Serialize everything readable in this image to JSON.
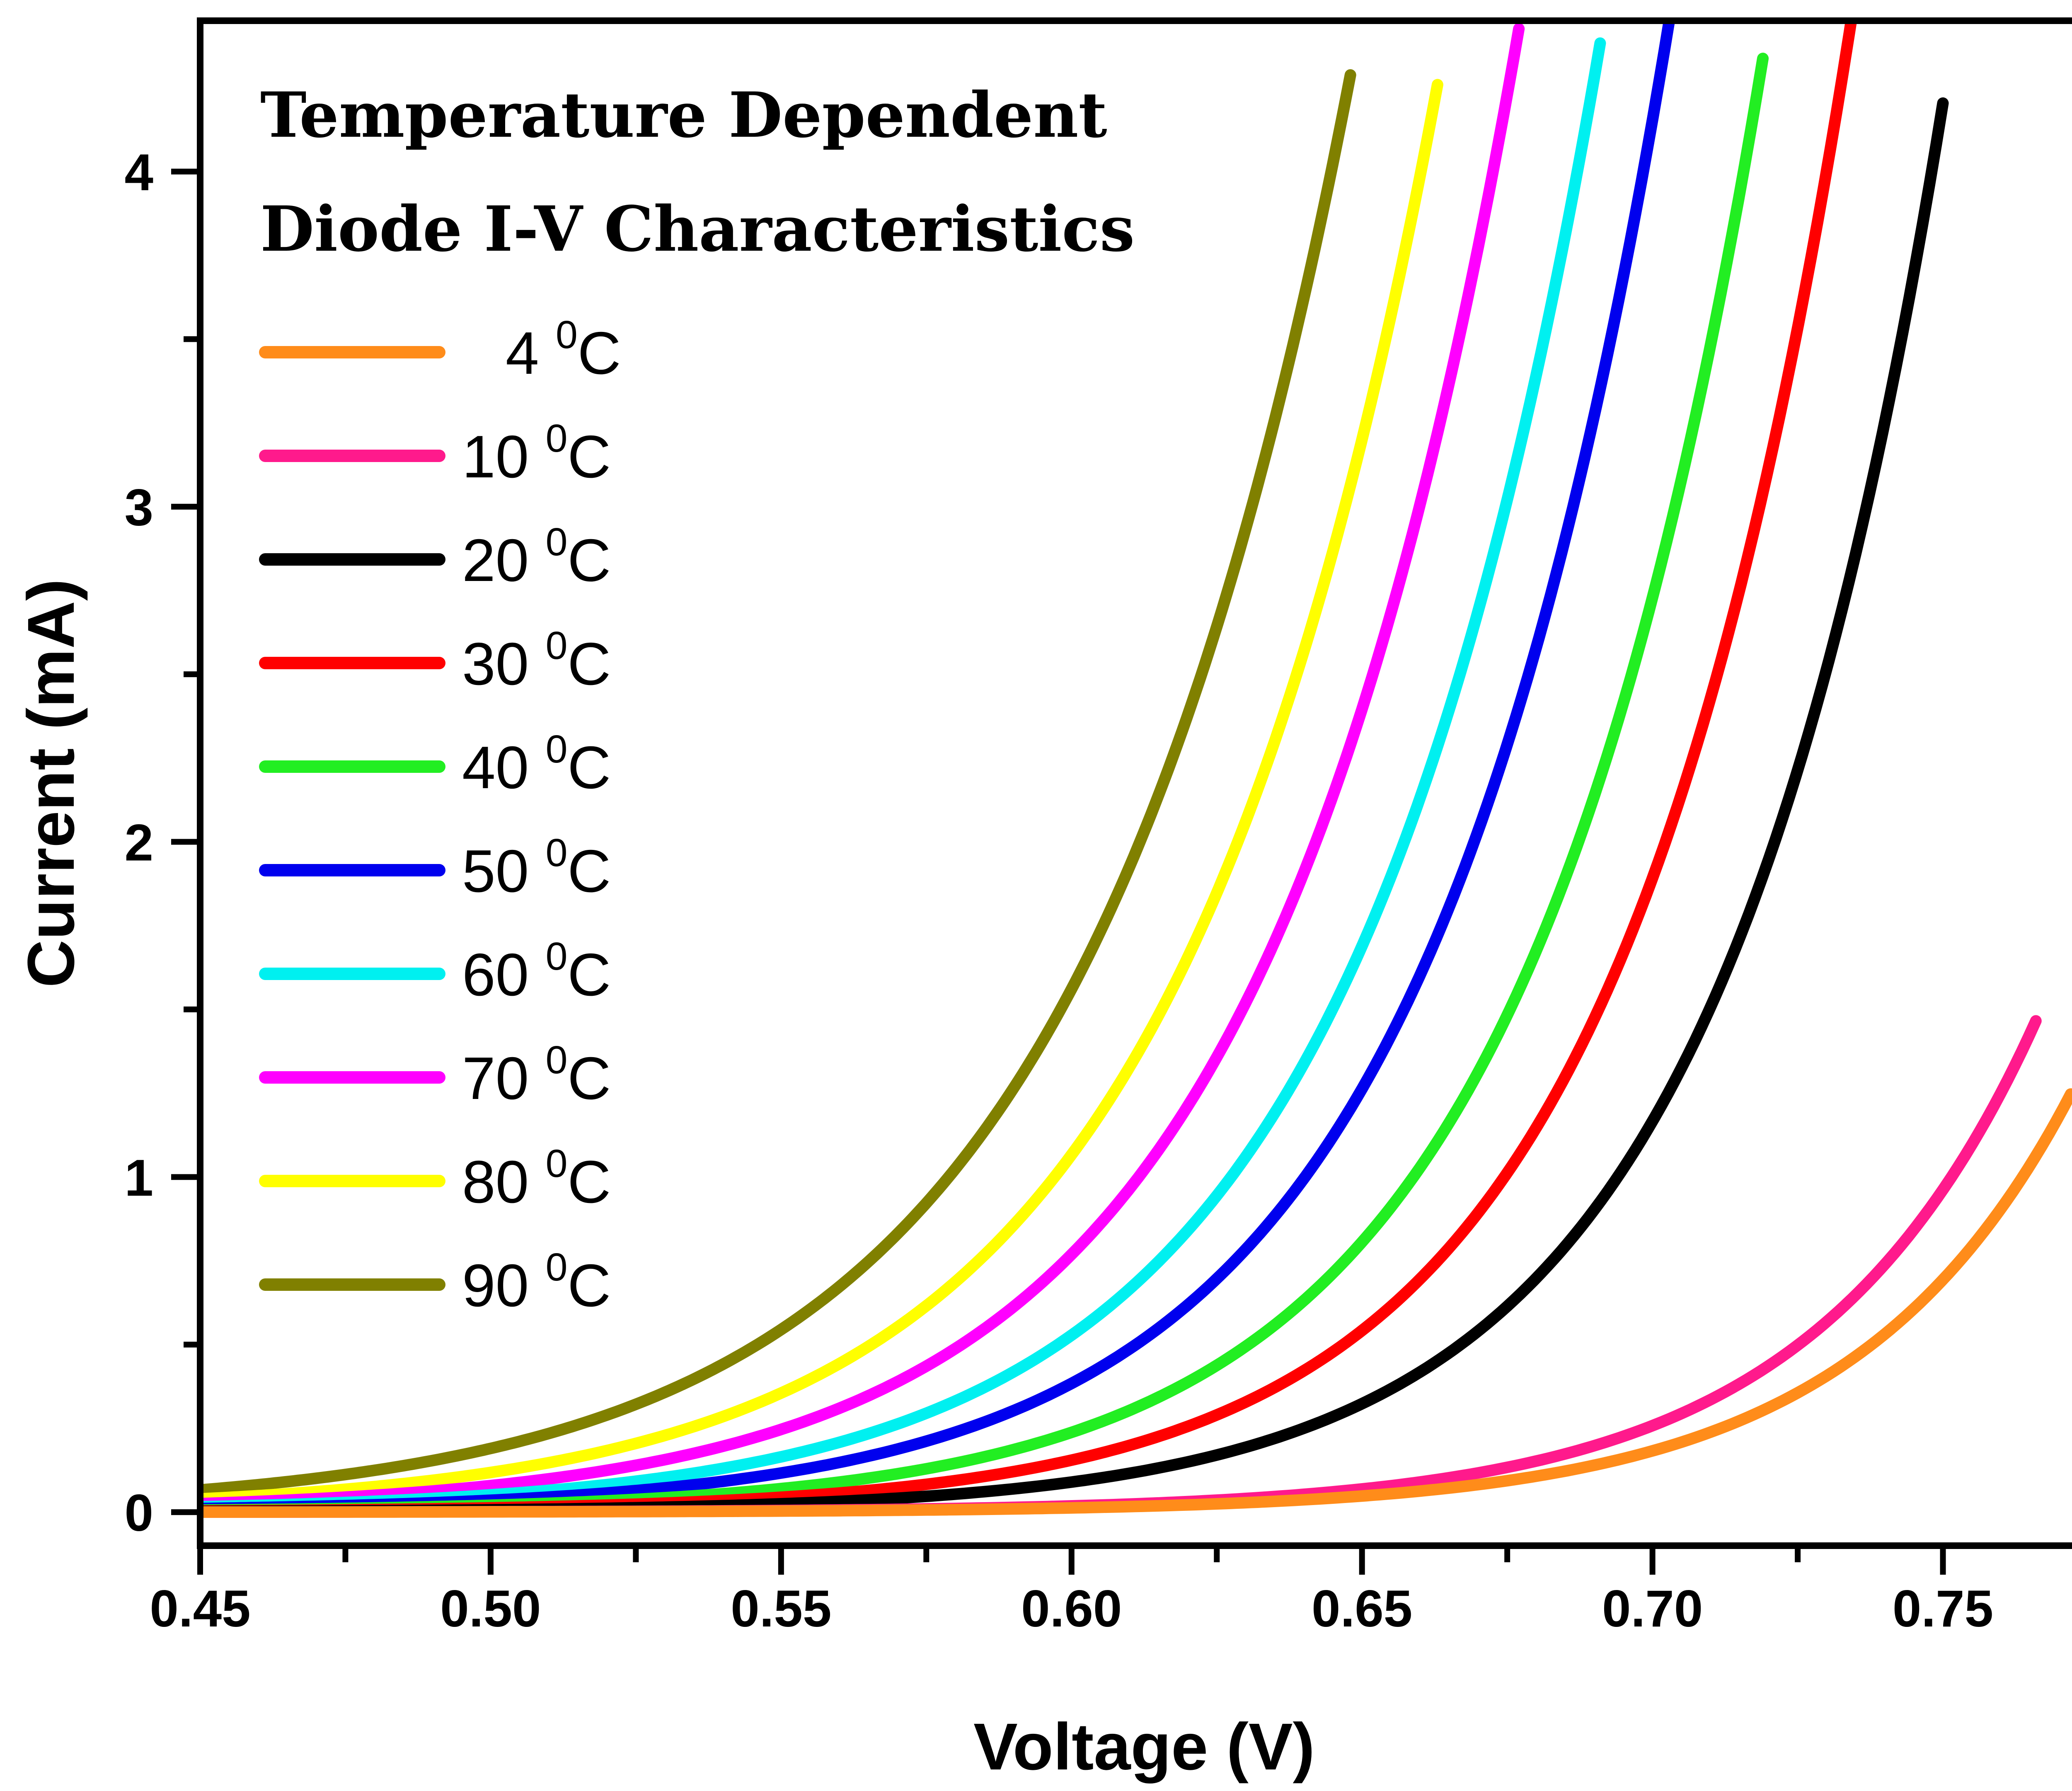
{
  "chart_data": {
    "type": "line",
    "title_lines": [
      "Temperature Dependent",
      "Diode I-V Characteristics"
    ],
    "xlabel": "Voltage (V)",
    "ylabel": "Current (mA)",
    "xlim": [
      0.45,
      0.775
    ],
    "ylim": [
      -0.1,
      4.45
    ],
    "x_ticks": [
      "0.45",
      "0.50",
      "0.55",
      "0.60",
      "0.65",
      "0.70",
      "0.75"
    ],
    "y_ticks": [
      "0",
      "1",
      "2",
      "3",
      "4"
    ],
    "grid": false,
    "legend_position": "top-left",
    "series": [
      {
        "num": "4",
        "unit": "C",
        "color": "#ff8c1a",
        "Vt": 0.0375,
        "I0": 1.43e-09,
        "vend": 0.772
      },
      {
        "num": "10",
        "unit": "C",
        "color": "#ff1a8c",
        "Vt": 0.038,
        "I0": 2.58e-09,
        "vend": 0.766
      },
      {
        "num": "20",
        "unit": "C",
        "color": "#000000",
        "Vt": 0.039,
        "I0": 1.87e-08,
        "vend": 0.75
      },
      {
        "num": "30",
        "unit": "C",
        "color": "#ff0000",
        "Vt": 0.04,
        "I0": 4.75e-08,
        "vend": 0.735
      },
      {
        "num": "40",
        "unit": "C",
        "color": "#22ee22",
        "Vt": 0.041,
        "I0": 1.05e-07,
        "vend": 0.719
      },
      {
        "num": "50",
        "unit": "C",
        "color": "#0000ee",
        "Vt": 0.042,
        "I0": 2.4e-07,
        "vend": 0.705
      },
      {
        "num": "60",
        "unit": "C",
        "color": "#00f0f0",
        "Vt": 0.043,
        "I0": 4.6e-07,
        "vend": 0.691
      },
      {
        "num": "70",
        "unit": "C",
        "color": "#ff00ff",
        "Vt": 0.044,
        "I0": 9.2e-07,
        "vend": 0.677
      },
      {
        "num": "80",
        "unit": "C",
        "color": "#ffff00",
        "Vt": 0.0455,
        "I0": 2e-06,
        "vend": 0.663
      },
      {
        "num": "90",
        "unit": "C",
        "color": "#808000",
        "Vt": 0.0475,
        "I0": 5.1e-06,
        "vend": 0.648
      }
    ]
  }
}
